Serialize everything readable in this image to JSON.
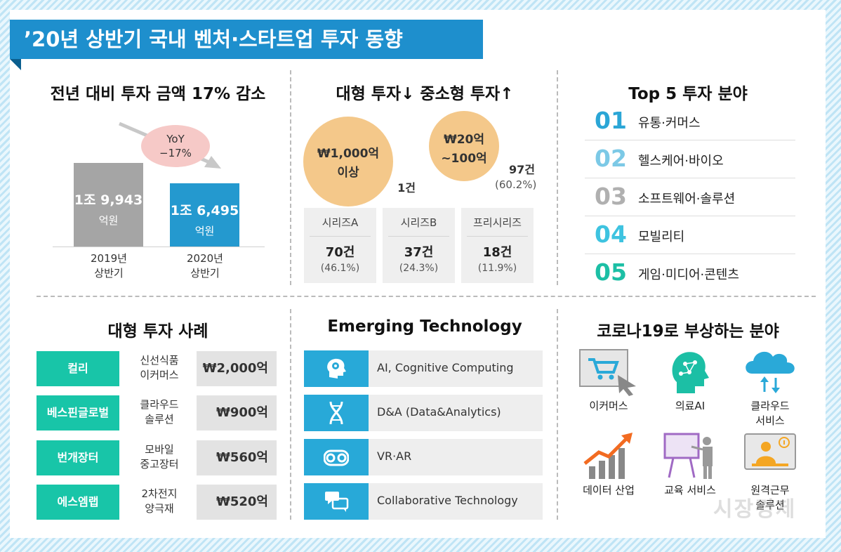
{
  "title": "’20년 상반기 국내 벤처·스타트업 투자 동향",
  "panel1": {
    "title": "전년 대비 투자 금액 17% 감소",
    "yoy": [
      "YoY",
      "−17%"
    ],
    "bars": [
      {
        "value": "1조 9,943",
        "unit": "억원",
        "label1": "2019년",
        "label2": "상반기",
        "color": "#a5a5a5"
      },
      {
        "value": "1조 6,495",
        "unit": "억원",
        "label1": "2020년",
        "label2": "상반기",
        "color": "#2499cf"
      }
    ]
  },
  "panel2": {
    "title": "대형 투자↓  중소형 투자↑",
    "big": {
      "line1": "₩1,000억",
      "line2": "이상",
      "count": "1건"
    },
    "mid": {
      "line1": "₩20억",
      "line2": "~100억",
      "count": "97건",
      "pct": "(60.2%)"
    },
    "series": [
      {
        "name": "시리즈A",
        "count": "70건",
        "pct": "(46.1%)"
      },
      {
        "name": "시리즈B",
        "count": "37건",
        "pct": "(24.3%)"
      },
      {
        "name": "프리시리즈",
        "count": "18건",
        "pct": "(11.9%)"
      }
    ]
  },
  "panel3": {
    "title": "Top 5 투자 분야",
    "items": [
      {
        "num": "01",
        "label": "유통·커머스",
        "color": "#2ba6d6"
      },
      {
        "num": "02",
        "label": "헬스케어·바이오",
        "color": "#7cc9e6"
      },
      {
        "num": "03",
        "label": "소프트웨어·솔루션",
        "color": "#b0b0b0"
      },
      {
        "num": "04",
        "label": "모빌리티",
        "color": "#3ec3e0"
      },
      {
        "num": "05",
        "label": "게임·미디어·콘텐츠",
        "color": "#1cbfa5"
      }
    ]
  },
  "panel4": {
    "title": "대형 투자 사례",
    "rows": [
      {
        "company": "컬리",
        "field1": "신선식품",
        "field2": "이커머스",
        "amount": "₩2,000억"
      },
      {
        "company": "베스핀글로벌",
        "field1": "클라우드",
        "field2": "솔루션",
        "amount": "₩900억"
      },
      {
        "company": "번개장터",
        "field1": "모바일",
        "field2": "중고장터",
        "amount": "₩560억"
      },
      {
        "company": "에스엠랩",
        "field1": "2차전지",
        "field2": "양극재",
        "amount": "₩520억"
      }
    ]
  },
  "panel5": {
    "title": "Emerging Technology",
    "items": [
      {
        "label": "AI, Cognitive Computing",
        "icon": "brain-head-icon"
      },
      {
        "label": "D&A (Data&Analytics)",
        "icon": "dna-icon"
      },
      {
        "label": "VR·AR",
        "icon": "vr-goggles-icon"
      },
      {
        "label": "Collaborative Technology",
        "icon": "chat-bubbles-icon"
      }
    ]
  },
  "panel6": {
    "title": "코로나19로 부상하는 분야",
    "items": [
      {
        "line1": "이커머스",
        "line2": "",
        "icon": "shopping-cart-icon"
      },
      {
        "line1": "의료AI",
        "line2": "",
        "icon": "ai-head-icon"
      },
      {
        "line1": "클라우드",
        "line2": "서비스",
        "icon": "cloud-icon"
      },
      {
        "line1": "데이터 산업",
        "line2": "",
        "icon": "growth-chart-icon"
      },
      {
        "line1": "교육 서비스",
        "line2": "",
        "icon": "presentation-board-icon"
      },
      {
        "line1": "원격근무",
        "line2": "솔루션",
        "icon": "remote-work-icon"
      }
    ]
  },
  "watermark": "시장경제"
}
